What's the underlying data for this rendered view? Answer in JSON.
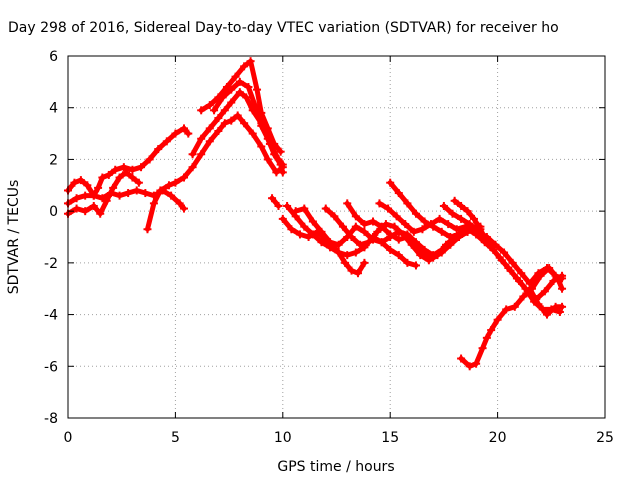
{
  "chart_data": {
    "type": "scatter",
    "title": "Day 298 of 2016, Sidereal Day-to-day VTEC variation (SDTVAR) for receiver ho",
    "xlabel": "GPS time / hours",
    "ylabel": "SDTVAR / TECUs",
    "xlim": [
      0,
      25
    ],
    "ylim": [
      -8,
      6
    ],
    "xticks": [
      "0",
      "5",
      "10",
      "15",
      "20",
      "25"
    ],
    "yticks": [
      "-8",
      "-6",
      "-4",
      "-2",
      "0",
      "2",
      "4",
      "6"
    ],
    "grid": true,
    "marker_color": "#ff0000",
    "series": [
      {
        "x": [
          0,
          0.3,
          0.6,
          0.9,
          1.2,
          1.4,
          1.6,
          1.9,
          2.2,
          2.6,
          3.0,
          3.4,
          3.8,
          4.2,
          4.6,
          5.0,
          5.4,
          5.6
        ],
        "values": [
          0.8,
          1.1,
          1.2,
          1.0,
          0.6,
          0.9,
          1.3,
          1.4,
          1.6,
          1.7,
          1.6,
          1.7,
          2.0,
          2.4,
          2.7,
          3.0,
          3.2,
          3.0
        ]
      },
      {
        "x": [
          0,
          0.4,
          0.8,
          1.2,
          1.6,
          2.0,
          2.4,
          2.8,
          3.2,
          3.6,
          4.0,
          4.4,
          4.8,
          5.2,
          5.4
        ],
        "values": [
          0.3,
          0.5,
          0.6,
          0.6,
          0.5,
          0.7,
          0.6,
          0.7,
          0.8,
          0.7,
          0.6,
          0.8,
          0.6,
          0.3,
          0.1
        ]
      },
      {
        "x": [
          0,
          0.4,
          0.8,
          1.2,
          1.5,
          1.8,
          2.1,
          2.4,
          2.7,
          3.0,
          3.3
        ],
        "values": [
          -0.1,
          0.1,
          0.0,
          0.2,
          -0.1,
          0.4,
          0.9,
          1.3,
          1.5,
          1.3,
          1.1
        ]
      },
      {
        "x": [
          3.7,
          4.0,
          4.3,
          4.7,
          5.0,
          5.4,
          5.8,
          6.2,
          6.6,
          7.0,
          7.3,
          7.6,
          7.9,
          8.2,
          8.6,
          9.0,
          9.3,
          9.7,
          10.0
        ],
        "values": [
          -0.7,
          0.3,
          0.8,
          1.0,
          1.1,
          1.3,
          1.7,
          2.2,
          2.7,
          3.1,
          3.4,
          3.5,
          3.7,
          3.4,
          3.0,
          2.5,
          2.0,
          1.5,
          1.7
        ]
      },
      {
        "x": [
          5.8,
          6.2,
          6.6,
          7.0,
          7.3,
          7.6,
          8.0,
          8.3,
          8.6,
          9.0,
          9.4,
          9.8,
          10.0
        ],
        "values": [
          2.2,
          2.8,
          3.2,
          3.6,
          3.9,
          4.2,
          4.6,
          4.4,
          3.9,
          3.4,
          2.6,
          2.0,
          1.8
        ]
      },
      {
        "x": [
          6.2,
          6.6,
          7.0,
          7.4,
          7.8,
          8.2,
          8.5,
          8.8,
          9.0,
          9.3,
          9.6,
          9.9
        ],
        "values": [
          3.9,
          4.1,
          4.4,
          4.8,
          5.2,
          5.6,
          5.8,
          4.7,
          3.8,
          3.2,
          2.6,
          2.3
        ]
      },
      {
        "x": [
          6.8,
          7.2,
          7.6,
          8.0,
          8.4,
          8.7,
          9.0,
          9.3,
          9.6,
          9.9,
          10.0
        ],
        "values": [
          3.9,
          4.4,
          4.7,
          5.0,
          4.8,
          4.1,
          3.3,
          2.8,
          2.2,
          1.8,
          1.5
        ]
      },
      {
        "x": [
          9.5,
          9.8
        ],
        "values": [
          0.5,
          0.2
        ]
      },
      {
        "x": [
          10.0,
          10.4,
          10.8,
          11.2,
          11.6,
          12.0,
          12.3,
          12.6,
          12.9,
          13.2,
          13.5,
          13.8
        ],
        "values": [
          -0.3,
          -0.7,
          -0.9,
          -1.0,
          -0.8,
          -1.1,
          -1.3,
          -1.6,
          -2.0,
          -2.3,
          -2.4,
          -2.0
        ]
      },
      {
        "x": [
          10.2,
          10.6,
          11.0,
          11.4,
          11.8,
          12.2,
          12.6,
          13.0,
          13.4,
          13.8,
          14.2,
          14.6,
          15.0,
          15.4,
          15.8,
          16.2
        ],
        "values": [
          0.2,
          -0.2,
          -0.6,
          -0.9,
          -1.2,
          -1.4,
          -1.6,
          -1.7,
          -1.6,
          -1.4,
          -1.0,
          -1.2,
          -1.5,
          -1.7,
          -2.0,
          -2.1
        ]
      },
      {
        "x": [
          10.6,
          11.0,
          11.4,
          11.8,
          12.2,
          12.6,
          13.0,
          13.4,
          13.8,
          14.2,
          14.6,
          15.0,
          15.4,
          15.8,
          16.2,
          16.6,
          17.0,
          17.4,
          17.8,
          18.2,
          18.6,
          19.0
        ],
        "values": [
          0.0,
          0.1,
          -0.4,
          -0.8,
          -1.2,
          -1.3,
          -1.0,
          -0.6,
          -0.8,
          -1.1,
          -1.2,
          -1.0,
          -0.8,
          -0.9,
          -1.2,
          -1.5,
          -1.7,
          -1.5,
          -1.2,
          -1.0,
          -0.8,
          -0.7
        ]
      },
      {
        "x": [
          12.0,
          12.4,
          12.8,
          13.2,
          13.6,
          14.0,
          14.4,
          14.8,
          15.2,
          15.6,
          16.0,
          16.4,
          16.8,
          17.2,
          17.6,
          18.0,
          18.4,
          18.8,
          19.2
        ],
        "values": [
          0.1,
          -0.2,
          -0.6,
          -1.0,
          -1.3,
          -1.2,
          -0.8,
          -0.5,
          -0.6,
          -0.9,
          -1.3,
          -1.7,
          -1.9,
          -1.7,
          -1.3,
          -1.0,
          -0.8,
          -0.6,
          -0.6
        ]
      },
      {
        "x": [
          13.0,
          13.4,
          13.8,
          14.2,
          14.6,
          15.0,
          15.4,
          15.8,
          16.2,
          16.6,
          17.0,
          17.4,
          17.8,
          18.2,
          18.6
        ],
        "values": [
          0.3,
          -0.2,
          -0.5,
          -0.4,
          -0.6,
          -0.9,
          -1.1,
          -1.0,
          -1.3,
          -1.6,
          -1.8,
          -1.6,
          -1.3,
          -1.0,
          -0.8
        ]
      },
      {
        "x": [
          14.5,
          14.9,
          15.3,
          15.7,
          16.1,
          16.5,
          16.9,
          17.3,
          17.7,
          18.1,
          18.5,
          18.9,
          19.3,
          19.7,
          20.1,
          20.5,
          20.9,
          21.3,
          21.7,
          22.1,
          22.5,
          22.9
        ],
        "values": [
          0.3,
          0.1,
          -0.2,
          -0.5,
          -0.8,
          -0.7,
          -0.5,
          -0.3,
          -0.5,
          -0.7,
          -0.6,
          -0.8,
          -1.0,
          -1.4,
          -1.8,
          -2.2,
          -2.6,
          -3.0,
          -3.5,
          -3.8,
          -3.8,
          -3.9
        ]
      },
      {
        "x": [
          15.0,
          15.4,
          15.8,
          16.2,
          16.6,
          17.0,
          17.4,
          17.8,
          18.2,
          18.6,
          19.0,
          19.4,
          19.8,
          20.2,
          20.6,
          21.0,
          21.4,
          21.8,
          22.2,
          22.6,
          23.0
        ],
        "values": [
          1.1,
          0.7,
          0.3,
          -0.1,
          -0.4,
          -0.6,
          -0.8,
          -1.0,
          -0.9,
          -0.7,
          -0.9,
          -1.2,
          -1.5,
          -1.9,
          -2.3,
          -2.7,
          -3.1,
          -3.4,
          -3.1,
          -2.7,
          -2.5
        ]
      },
      {
        "x": [
          17.5,
          17.9,
          18.3,
          18.7,
          19.1,
          19.5,
          19.9,
          20.3,
          20.7,
          21.1,
          21.5,
          21.9,
          22.3,
          22.7,
          23.0
        ],
        "values": [
          0.2,
          -0.1,
          -0.3,
          -0.5,
          -0.8,
          -1.0,
          -1.3,
          -1.6,
          -2.0,
          -2.4,
          -2.8,
          -2.4,
          -2.2,
          -2.5,
          -2.6
        ]
      },
      {
        "x": [
          18.0,
          18.3,
          18.6,
          18.9,
          19.2,
          19.5
        ],
        "values": [
          0.4,
          0.2,
          0.0,
          -0.3,
          -0.7,
          -1.2
        ]
      },
      {
        "x": [
          18.3,
          18.7,
          19.0,
          19.3,
          19.5,
          19.7,
          20.0,
          20.4,
          20.8,
          21.2,
          21.6,
          22.0,
          22.4,
          22.8,
          23.0
        ],
        "values": [
          -5.7,
          -6.0,
          -5.9,
          -5.3,
          -4.9,
          -4.6,
          -4.2,
          -3.8,
          -3.7,
          -3.3,
          -3.0,
          -2.5,
          -2.2,
          -2.6,
          -3.0
        ]
      },
      {
        "x": [
          21.5,
          21.9,
          22.3,
          22.7,
          23.0
        ],
        "values": [
          -3.0,
          -3.6,
          -4.0,
          -3.7,
          -3.7
        ]
      }
    ]
  }
}
